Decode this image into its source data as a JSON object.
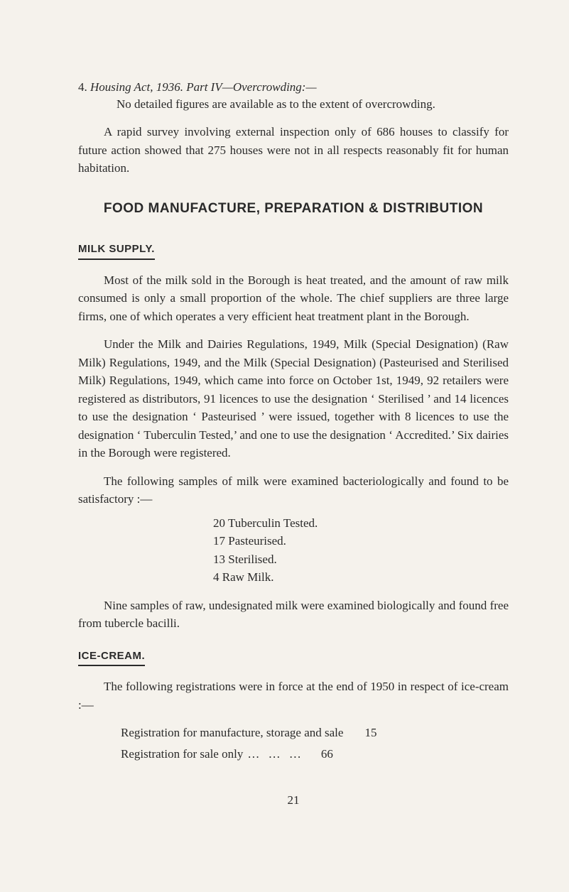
{
  "item4": {
    "number": "4.",
    "title": "Housing Act, 1936.  Part IV—Overcrowding:—",
    "body": "No detailed figures are available as to the extent of overcrowding."
  },
  "intro_para": "A rapid survey involving external inspection only of 686 houses to classify for future action showed that 275 houses were not in all respects reasonably fit for human habitation.",
  "heading_main": "FOOD MANUFACTURE, PREPARATION & DISTRIBUTION",
  "milk": {
    "heading": "MILK SUPPLY.",
    "p1": "Most of the milk sold in the Borough is heat treated, and the amount of raw milk consumed is only a small proportion of the whole. The chief suppliers are three large firms, one of which operates a very efficient heat treatment plant in the Borough.",
    "p2": "Under the Milk and Dairies Regulations, 1949, Milk (Special Designation) (Raw Milk) Regulations, 1949, and the Milk (Special Designation) (Pasteurised and Sterilised Milk) Regulations, 1949, which came into force on October 1st, 1949, 92 retailers were registered as distributors, 91 licences to use the designation ‘ Sterilised ’ and 14 licences to use the designation ‘ Pasteurised ’ were issued, together with 8 licences to use the designation ‘ Tuberculin Tested,’ and one to use the designation ‘ Accredited.’ Six dairies in the Borough were registered.",
    "p3": "The following samples of milk were examined bacteriologically and found to be satisfactory :—",
    "list": [
      "20  Tuberculin Tested.",
      "17  Pasteurised.",
      "13  Sterilised.",
      " 4  Raw Milk."
    ],
    "p4": "Nine samples of raw, undesignated milk were examined bio­logically and found free from tubercle bacilli."
  },
  "ice": {
    "heading": "ICE-CREAM.",
    "p1": "The following registrations were in force at the end of 1950 in respect of ice-cream :—",
    "rows": [
      {
        "label": "Registration for manufacture, storage and sale",
        "dots": "",
        "value": "15"
      },
      {
        "label": "Registration for sale only",
        "dots": "…   …   …",
        "value": "66"
      }
    ]
  },
  "page_number": "21"
}
